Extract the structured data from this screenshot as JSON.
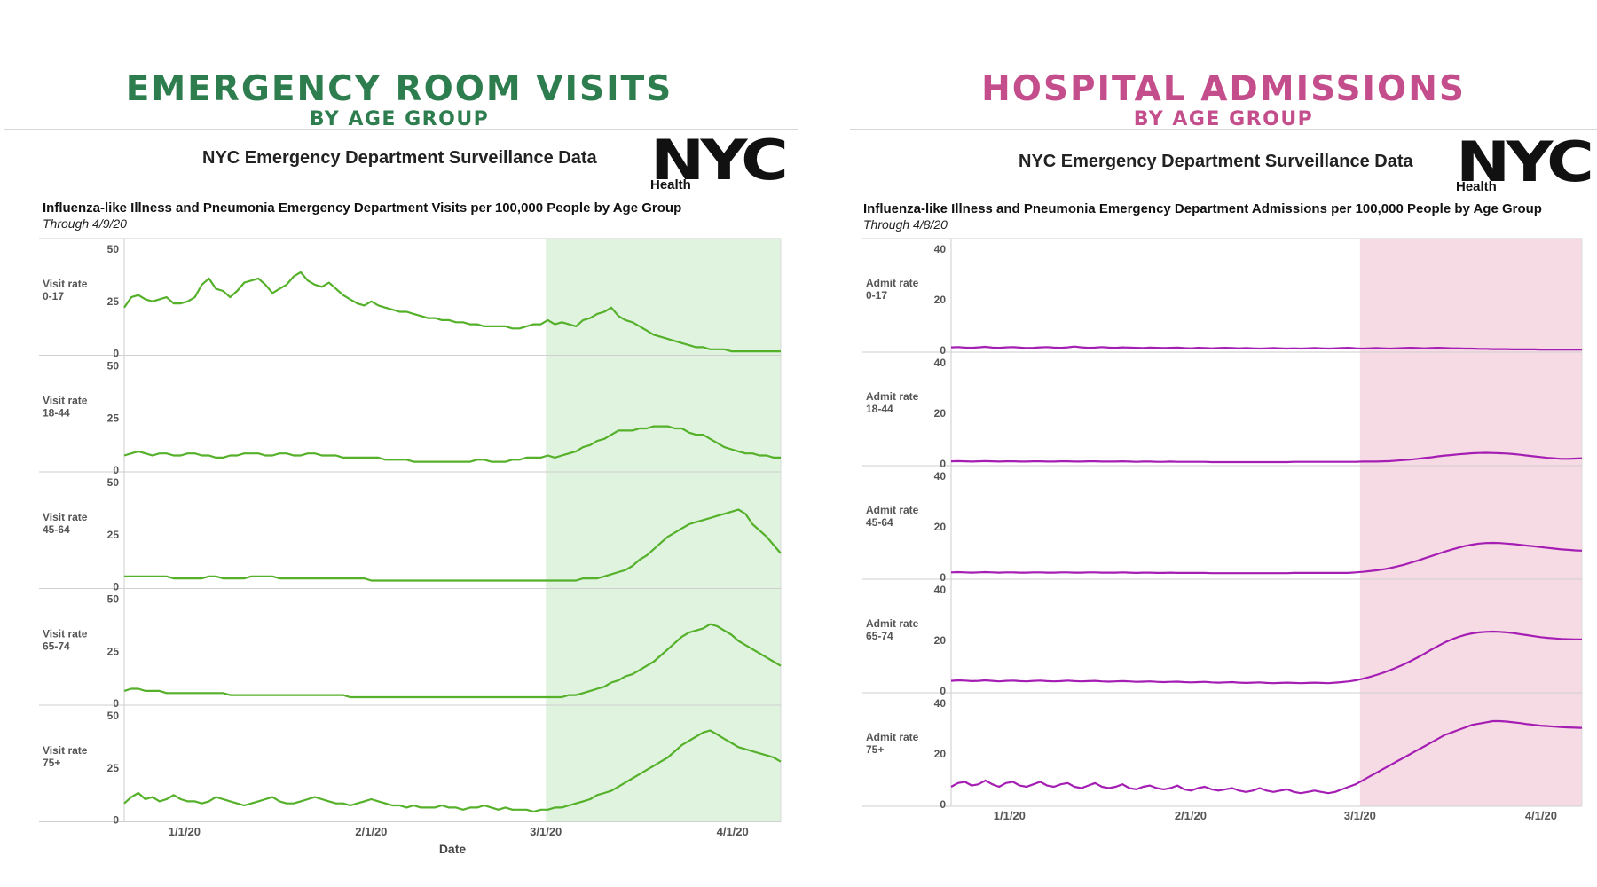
{
  "left_panel": {
    "title": "EMERGENCY ROOM VISITS",
    "subtitle": "BY AGE GROUP",
    "accent": "#2e7d4f",
    "header": "NYC Emergency Department Surveillance Data",
    "logo": "NYC",
    "logo_sub": "Health",
    "chart_title": "Influenza-like Illness and Pneumonia Emergency Department Visits per 100,000 People by Age Group",
    "chart_subtitle": "Through 4/9/20"
  },
  "right_panel": {
    "title": "HOSPITAL ADMISSIONS",
    "subtitle": "BY AGE GROUP",
    "accent": "#c44e8c",
    "header": "NYC Emergency Department Surveillance Data",
    "logo": "NYC",
    "logo_sub": "Health",
    "chart_title": "Influenza-like Illness and Pneumonia Emergency Department Admissions per 100,000 People by Age Group",
    "chart_subtitle": "Through 4/8/20"
  },
  "chart_data": [
    {
      "type": "line",
      "line_color": "#55b02a",
      "highlight_color": "#dff3df",
      "highlight_range": [
        "3/1/20",
        "4/9/20"
      ],
      "x_range": [
        "12/22/19",
        "4/9/20"
      ],
      "x_ticks": [
        "1/1/20",
        "2/1/20",
        "3/1/20",
        "4/1/20"
      ],
      "xlabel": "Date",
      "ylim": [
        0,
        50
      ],
      "yticks": [
        "50",
        "25",
        "0"
      ],
      "series": [
        {
          "name": "Visit rate 0-17",
          "row_label": [
            "Visit rate",
            "0-17"
          ],
          "values": [
            22,
            27,
            28,
            26,
            25,
            26,
            27,
            24,
            24,
            25,
            27,
            33,
            36,
            31,
            30,
            27,
            30,
            34,
            35,
            36,
            33,
            29,
            31,
            33,
            37,
            39,
            35,
            33,
            32,
            34,
            31,
            28,
            26,
            24,
            23,
            25,
            23,
            22,
            21,
            20,
            20,
            19,
            18,
            17,
            17,
            16,
            16,
            15,
            15,
            14,
            14,
            13,
            13,
            13,
            13,
            12,
            12,
            13,
            14,
            14,
            16,
            14,
            15,
            14,
            13,
            16,
            17,
            19,
            20,
            22,
            18,
            16,
            15,
            13,
            11,
            9,
            8,
            7,
            6,
            5,
            4,
            3,
            3,
            2,
            2,
            2,
            1,
            1,
            1,
            1,
            1,
            1,
            1,
            1
          ]
        },
        {
          "name": "Visit rate 18-44",
          "row_label": [
            "Visit rate",
            "18-44"
          ],
          "values": [
            7,
            8,
            9,
            8,
            7,
            8,
            8,
            7,
            7,
            8,
            8,
            7,
            7,
            6,
            6,
            7,
            7,
            8,
            8,
            8,
            7,
            7,
            8,
            8,
            7,
            7,
            8,
            8,
            7,
            7,
            7,
            6,
            6,
            6,
            6,
            6,
            6,
            5,
            5,
            5,
            5,
            4,
            4,
            4,
            4,
            4,
            4,
            4,
            4,
            4,
            5,
            5,
            4,
            4,
            4,
            5,
            5,
            6,
            6,
            6,
            7,
            6,
            7,
            8,
            9,
            11,
            12,
            14,
            15,
            17,
            19,
            19,
            19,
            20,
            20,
            21,
            21,
            21,
            20,
            20,
            18,
            17,
            17,
            15,
            13,
            11,
            10,
            9,
            8,
            8,
            7,
            7,
            6,
            6
          ]
        },
        {
          "name": "Visit rate 45-64",
          "row_label": [
            "Visit rate",
            "45-64"
          ],
          "values": [
            5,
            5,
            5,
            5,
            5,
            5,
            5,
            4,
            4,
            4,
            4,
            4,
            5,
            5,
            4,
            4,
            4,
            4,
            5,
            5,
            5,
            5,
            4,
            4,
            4,
            4,
            4,
            4,
            4,
            4,
            4,
            4,
            4,
            4,
            4,
            3,
            3,
            3,
            3,
            3,
            3,
            3,
            3,
            3,
            3,
            3,
            3,
            3,
            3,
            3,
            3,
            3,
            3,
            3,
            3,
            3,
            3,
            3,
            3,
            3,
            3,
            3,
            3,
            3,
            3,
            4,
            4,
            4,
            5,
            6,
            7,
            8,
            10,
            13,
            15,
            18,
            21,
            24,
            26,
            28,
            30,
            31,
            32,
            33,
            34,
            35,
            36,
            37,
            35,
            30,
            27,
            24,
            20,
            16
          ]
        },
        {
          "name": "Visit rate 65-74",
          "row_label": [
            "Visit rate",
            "65-74"
          ],
          "values": [
            6,
            7,
            7,
            6,
            6,
            6,
            5,
            5,
            5,
            5,
            5,
            5,
            5,
            5,
            5,
            4,
            4,
            4,
            4,
            4,
            4,
            4,
            4,
            4,
            4,
            4,
            4,
            4,
            4,
            4,
            4,
            4,
            3,
            3,
            3,
            3,
            3,
            3,
            3,
            3,
            3,
            3,
            3,
            3,
            3,
            3,
            3,
            3,
            3,
            3,
            3,
            3,
            3,
            3,
            3,
            3,
            3,
            3,
            3,
            3,
            3,
            3,
            3,
            4,
            4,
            5,
            6,
            7,
            8,
            10,
            11,
            13,
            14,
            16,
            18,
            20,
            23,
            26,
            29,
            32,
            34,
            35,
            36,
            38,
            37,
            35,
            33,
            30,
            28,
            26,
            24,
            22,
            20,
            18
          ]
        },
        {
          "name": "Visit rate 75+",
          "row_label": [
            "Visit rate",
            "75+"
          ],
          "values": [
            8,
            11,
            13,
            10,
            11,
            9,
            10,
            12,
            10,
            9,
            9,
            8,
            9,
            11,
            10,
            9,
            8,
            7,
            8,
            9,
            10,
            11,
            9,
            8,
            8,
            9,
            10,
            11,
            10,
            9,
            8,
            8,
            7,
            8,
            9,
            10,
            9,
            8,
            7,
            7,
            6,
            7,
            6,
            6,
            6,
            7,
            6,
            6,
            5,
            6,
            6,
            7,
            6,
            5,
            6,
            5,
            5,
            5,
            4,
            5,
            5,
            6,
            6,
            7,
            8,
            9,
            10,
            12,
            13,
            14,
            16,
            18,
            20,
            22,
            24,
            26,
            28,
            30,
            33,
            36,
            38,
            40,
            42,
            43,
            41,
            39,
            37,
            35,
            34,
            33,
            32,
            31,
            30,
            28
          ]
        }
      ]
    },
    {
      "type": "line",
      "line_color": "#a51eb4",
      "highlight_color": "#f7dbe4",
      "highlight_range": [
        "3/1/20",
        "4/8/20"
      ],
      "x_range": [
        "12/22/19",
        "4/8/20"
      ],
      "x_ticks": [
        "1/1/20",
        "2/1/20",
        "3/1/20",
        "4/1/20"
      ],
      "xlabel": "",
      "ylim": [
        0,
        40
      ],
      "yticks": [
        "40",
        "20",
        "0"
      ],
      "series": [
        {
          "name": "Admit rate 0-17",
          "row_label": [
            "Admit rate",
            "0-17"
          ],
          "values": [
            1.2,
            1.3,
            1.1,
            1.0,
            1.2,
            1.4,
            1.1,
            1.0,
            1.2,
            1.3,
            1.1,
            0.9,
            1.0,
            1.2,
            1.3,
            1.1,
            1.0,
            1.2,
            1.5,
            1.2,
            1.0,
            1.1,
            1.3,
            1.1,
            1.0,
            1.2,
            1.1,
            1.0,
            0.9,
            1.1,
            1.0,
            0.9,
            1.0,
            1.1,
            0.9,
            0.8,
            1.0,
            0.9,
            0.8,
            0.9,
            1.0,
            0.9,
            0.8,
            0.9,
            0.8,
            0.7,
            0.8,
            0.9,
            0.8,
            0.7,
            0.8,
            0.7,
            0.8,
            0.9,
            0.8,
            0.7,
            0.8,
            0.9,
            1.0,
            0.8,
            0.7,
            0.8,
            0.9,
            0.8,
            0.7,
            0.8,
            0.9,
            1.0,
            0.9,
            0.8,
            0.9,
            1.0,
            0.9,
            0.8,
            0.8,
            0.7,
            0.7,
            0.6,
            0.6,
            0.5,
            0.5,
            0.5,
            0.4,
            0.4,
            0.4,
            0.4,
            0.3,
            0.3,
            0.3,
            0.3,
            0.3,
            0.3,
            0.3
          ]
        },
        {
          "name": "Admit rate 18-44",
          "row_label": [
            "Admit rate",
            "18-44"
          ],
          "values": [
            1.0,
            1.1,
            1.0,
            0.9,
            1.0,
            1.1,
            1.0,
            0.9,
            1.0,
            1.0,
            0.9,
            0.9,
            1.0,
            1.0,
            0.9,
            0.9,
            1.0,
            1.0,
            0.9,
            0.9,
            1.0,
            1.0,
            0.9,
            0.9,
            0.9,
            1.0,
            0.9,
            0.8,
            0.9,
            0.9,
            0.8,
            0.8,
            0.9,
            0.8,
            0.8,
            0.8,
            0.8,
            0.8,
            0.7,
            0.7,
            0.7,
            0.7,
            0.7,
            0.7,
            0.7,
            0.7,
            0.7,
            0.7,
            0.7,
            0.7,
            0.8,
            0.8,
            0.8,
            0.8,
            0.8,
            0.8,
            0.8,
            0.8,
            0.8,
            0.8,
            0.9,
            0.9,
            0.9,
            1.0,
            1.1,
            1.3,
            1.5,
            1.7,
            2.0,
            2.3,
            2.6,
            3.0,
            3.3,
            3.5,
            3.8,
            4.0,
            4.2,
            4.3,
            4.4,
            4.3,
            4.2,
            4.1,
            3.9,
            3.6,
            3.3,
            3.0,
            2.7,
            2.4,
            2.2,
            2.0,
            2.0,
            2.1,
            2.2
          ]
        },
        {
          "name": "Admit rate 45-64",
          "row_label": [
            "Admit rate",
            "45-64"
          ],
          "values": [
            2.0,
            2.1,
            2.0,
            1.9,
            2.0,
            2.1,
            2.0,
            1.9,
            2.0,
            2.0,
            1.9,
            1.9,
            2.0,
            2.0,
            1.9,
            1.9,
            2.0,
            2.0,
            1.9,
            1.9,
            2.0,
            2.0,
            1.9,
            1.9,
            1.9,
            2.0,
            1.9,
            1.8,
            1.9,
            1.9,
            1.8,
            1.8,
            1.9,
            1.8,
            1.8,
            1.8,
            1.8,
            1.8,
            1.7,
            1.7,
            1.7,
            1.7,
            1.7,
            1.7,
            1.7,
            1.7,
            1.7,
            1.7,
            1.7,
            1.7,
            1.8,
            1.8,
            1.8,
            1.8,
            1.8,
            1.8,
            1.8,
            1.8,
            1.8,
            2.0,
            2.2,
            2.5,
            2.8,
            3.2,
            3.7,
            4.3,
            5.0,
            5.8,
            6.6,
            7.5,
            8.4,
            9.3,
            10.2,
            11.0,
            11.8,
            12.5,
            13.0,
            13.4,
            13.6,
            13.7,
            13.6,
            13.4,
            13.2,
            12.9,
            12.6,
            12.3,
            12.0,
            11.7,
            11.4,
            11.1,
            10.9,
            10.7,
            10.6
          ]
        },
        {
          "name": "Admit rate 65-74",
          "row_label": [
            "Admit rate",
            "65-74"
          ],
          "values": [
            4.0,
            4.2,
            4.1,
            3.9,
            4.0,
            4.2,
            4.0,
            3.8,
            4.0,
            4.1,
            3.9,
            3.8,
            4.0,
            4.1,
            3.9,
            3.8,
            3.9,
            4.1,
            3.9,
            3.8,
            3.9,
            4.0,
            3.8,
            3.7,
            3.8,
            3.9,
            3.8,
            3.6,
            3.7,
            3.8,
            3.6,
            3.5,
            3.6,
            3.7,
            3.5,
            3.4,
            3.5,
            3.6,
            3.4,
            3.3,
            3.4,
            3.5,
            3.3,
            3.2,
            3.3,
            3.4,
            3.2,
            3.1,
            3.2,
            3.3,
            3.2,
            3.1,
            3.2,
            3.3,
            3.2,
            3.1,
            3.3,
            3.5,
            3.8,
            4.2,
            4.8,
            5.5,
            6.3,
            7.2,
            8.2,
            9.3,
            10.5,
            11.8,
            13.2,
            14.7,
            16.3,
            17.8,
            19.2,
            20.4,
            21.4,
            22.2,
            22.8,
            23.2,
            23.4,
            23.5,
            23.4,
            23.2,
            22.9,
            22.5,
            22.1,
            21.7,
            21.3,
            21.0,
            20.8,
            20.6,
            20.5,
            20.4,
            20.4
          ]
        },
        {
          "name": "Admit rate 75+",
          "row_label": [
            "Admit rate",
            "75+"
          ],
          "values": [
            7.0,
            8.5,
            9.0,
            7.5,
            8.0,
            9.5,
            8.0,
            7.0,
            8.5,
            9.0,
            7.5,
            7.0,
            8.0,
            9.0,
            7.5,
            7.0,
            8.0,
            8.5,
            7.0,
            6.5,
            7.5,
            8.5,
            7.0,
            6.5,
            7.0,
            8.0,
            6.5,
            6.0,
            7.0,
            7.5,
            6.5,
            6.0,
            6.5,
            7.5,
            6.0,
            5.5,
            6.5,
            7.0,
            6.0,
            5.5,
            6.0,
            6.5,
            5.5,
            5.0,
            5.5,
            6.5,
            5.5,
            5.0,
            5.5,
            6.0,
            5.0,
            4.5,
            5.0,
            5.5,
            5.0,
            4.5,
            5.0,
            6.0,
            7.0,
            8.0,
            9.5,
            11.0,
            12.5,
            14.0,
            15.5,
            17.0,
            18.5,
            20.0,
            21.5,
            23.0,
            24.5,
            26.0,
            27.5,
            28.5,
            29.5,
            30.5,
            31.5,
            32.0,
            32.5,
            33.0,
            33.0,
            32.8,
            32.5,
            32.2,
            31.8,
            31.5,
            31.2,
            31.0,
            30.8,
            30.6,
            30.5,
            30.4,
            30.3
          ]
        }
      ]
    }
  ]
}
